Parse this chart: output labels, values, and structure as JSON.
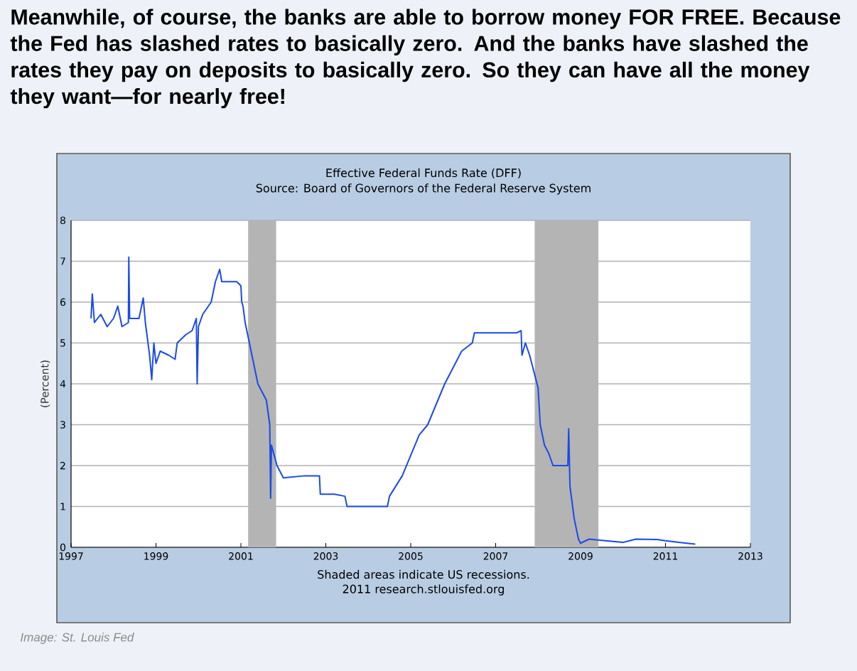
{
  "chart_data": {
    "type": "line",
    "title": "Effective Federal Funds Rate (DFF)",
    "subtitle": "Source: Board of Governors of the Federal Reserve System",
    "ylabel": "(Percent)",
    "annotations": [
      "Meanwhile, of course, the banks are able to borrow money FOR FREE. Because the Fed has slashed rates to basically zero. And the banks have slashed the rates they pay on deposits to basically zero. So they can have all the money they want—for nearly free!",
      "Shaded areas indicate US recessions.",
      "2011 research.stlouisfed.org",
      "Image: St. Louis Fed"
    ],
    "xlim": [
      1997,
      2013
    ],
    "xticks": [
      1997,
      1999,
      2001,
      2003,
      2005,
      2007,
      2009,
      2011,
      2013
    ],
    "ylim": [
      0,
      8
    ],
    "yticks": [
      0,
      1,
      2,
      3,
      4,
      5,
      6,
      7,
      8
    ],
    "grid": "y",
    "bands": [
      {
        "axis": "x",
        "from": 2001.17,
        "to": 2001.83,
        "color": "#b4b4b4"
      },
      {
        "axis": "x",
        "from": 2007.92,
        "to": 2009.42,
        "color": "#b4b4b4"
      }
    ],
    "series": [
      {
        "color": "#1a4be6",
        "x": [
          1997.47,
          1997.5,
          1997.55,
          1997.7,
          1997.85,
          1998.0,
          1998.1,
          1998.2,
          1998.35,
          1998.36,
          1998.38,
          1998.6,
          1998.7,
          1998.75,
          1998.85,
          1998.9,
          1998.95,
          1999.0,
          1999.1,
          1999.3,
          1999.45,
          1999.5,
          1999.7,
          1999.85,
          1999.95,
          1999.97,
          2000.0,
          2000.1,
          2000.3,
          2000.4,
          2000.5,
          2000.55,
          2000.7,
          2000.9,
          2001.0,
          2001.02,
          2001.05,
          2001.1,
          2001.2,
          2001.3,
          2001.4,
          2001.5,
          2001.6,
          2001.68,
          2001.7,
          2001.72,
          2001.85,
          2001.95,
          2002.0,
          2002.5,
          2002.85,
          2002.87,
          2003.2,
          2003.45,
          2003.5,
          2003.8,
          2004.2,
          2004.45,
          2004.5,
          2004.65,
          2004.8,
          2005.0,
          2005.2,
          2005.4,
          2005.6,
          2005.8,
          2006.0,
          2006.2,
          2006.45,
          2006.5,
          2007.0,
          2007.5,
          2007.6,
          2007.62,
          2007.7,
          2007.8,
          2007.9,
          2008.0,
          2008.05,
          2008.15,
          2008.25,
          2008.35,
          2008.5,
          2008.7,
          2008.72,
          2008.75,
          2008.85,
          2008.95,
          2009.0,
          2009.2,
          2009.5,
          2010.0,
          2010.3,
          2010.8,
          2011.0,
          2011.5,
          2011.7
        ],
        "values": [
          5.6,
          6.2,
          5.5,
          5.7,
          5.4,
          5.6,
          5.9,
          5.4,
          5.5,
          7.1,
          5.6,
          5.6,
          6.1,
          5.5,
          4.7,
          4.1,
          5.0,
          4.5,
          4.8,
          4.7,
          4.6,
          5.0,
          5.2,
          5.3,
          5.6,
          4.0,
          5.4,
          5.7,
          6.0,
          6.5,
          6.8,
          6.5,
          6.5,
          6.5,
          6.4,
          6.0,
          5.9,
          5.5,
          5.0,
          4.5,
          4.0,
          3.8,
          3.6,
          3.0,
          1.2,
          2.5,
          2.0,
          1.8,
          1.7,
          1.75,
          1.75,
          1.3,
          1.3,
          1.25,
          1.0,
          1.0,
          1.0,
          1.0,
          1.25,
          1.5,
          1.75,
          2.25,
          2.75,
          3.0,
          3.5,
          4.0,
          4.4,
          4.8,
          5.0,
          5.25,
          5.25,
          5.25,
          5.3,
          4.7,
          5.0,
          4.7,
          4.3,
          3.9,
          3.0,
          2.5,
          2.3,
          2.0,
          2.0,
          2.0,
          2.9,
          1.5,
          0.7,
          0.2,
          0.1,
          0.2,
          0.17,
          0.12,
          0.2,
          0.19,
          0.16,
          0.1,
          0.08
        ]
      }
    ]
  }
}
